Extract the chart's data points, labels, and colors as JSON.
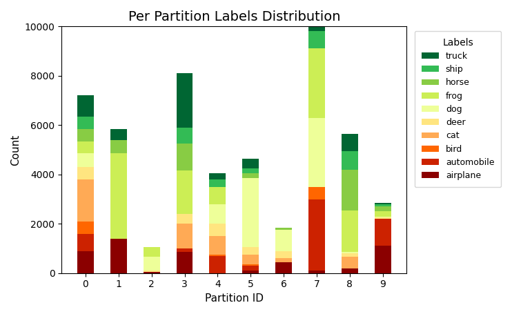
{
  "title": "Per Partition Labels Distribution",
  "xlabel": "Partition ID",
  "ylabel": "Count",
  "ylim": [
    0,
    10000
  ],
  "partitions": [
    0,
    1,
    2,
    3,
    4,
    5,
    6,
    7,
    8,
    9
  ],
  "labels": [
    "airplane",
    "automobile",
    "bird",
    "cat",
    "deer",
    "dog",
    "frog",
    "horse",
    "ship",
    "truck"
  ],
  "colors": {
    "airplane": "#8B0000",
    "automobile": "#CC2200",
    "bird": "#FF6600",
    "cat": "#FFAA55",
    "deer": "#FFE580",
    "dog": "#EEFF99",
    "frog": "#CCEE55",
    "horse": "#88CC44",
    "ship": "#33BB55",
    "truck": "#006633"
  },
  "data": {
    "airplane": [
      900,
      1400,
      50,
      850,
      0,
      100,
      450,
      100,
      200,
      1100
    ],
    "automobile": [
      700,
      0,
      0,
      150,
      700,
      200,
      0,
      2900,
      0,
      1100
    ],
    "bird": [
      500,
      0,
      0,
      0,
      50,
      50,
      0,
      500,
      0,
      0
    ],
    "cat": [
      1700,
      0,
      0,
      1000,
      750,
      400,
      150,
      0,
      450,
      0
    ],
    "deer": [
      500,
      0,
      50,
      400,
      500,
      300,
      300,
      0,
      150,
      50
    ],
    "dog": [
      550,
      0,
      550,
      0,
      800,
      2800,
      850,
      2800,
      50,
      50
    ],
    "frog": [
      500,
      3450,
      400,
      1750,
      700,
      0,
      0,
      2800,
      1700,
      200
    ],
    "horse": [
      500,
      550,
      0,
      1100,
      0,
      200,
      100,
      0,
      1650,
      200
    ],
    "ship": [
      500,
      0,
      0,
      650,
      300,
      200,
      0,
      700,
      750,
      100
    ],
    "truck": [
      850,
      450,
      0,
      2200,
      250,
      400,
      0,
      650,
      700,
      50
    ]
  }
}
